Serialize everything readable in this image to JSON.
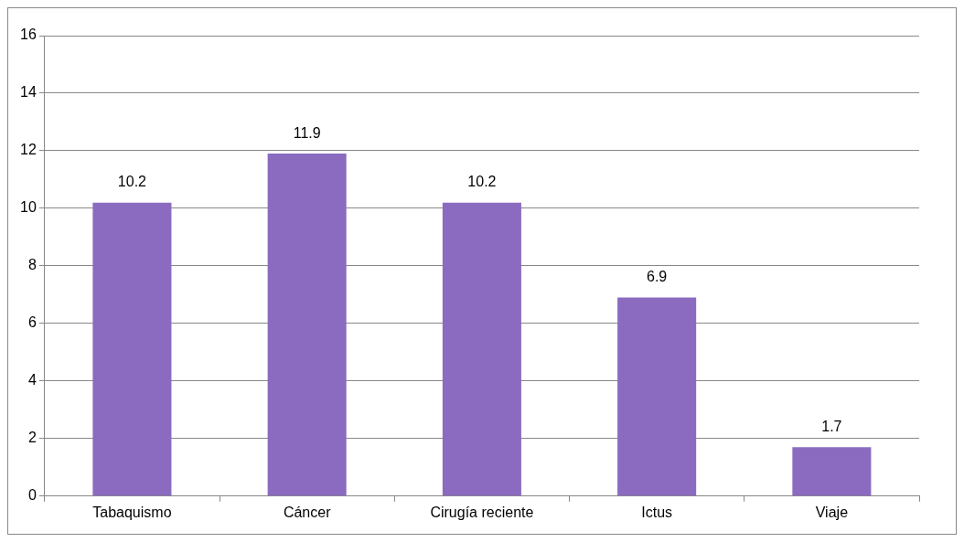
{
  "chart_data": {
    "type": "bar",
    "categories": [
      "Tabaquismo",
      "Cáncer",
      "Cirugía reciente",
      "Ictus",
      "Viaje"
    ],
    "values": [
      10.2,
      11.9,
      10.2,
      6.9,
      1.7
    ],
    "color": "#8b6bbf",
    "ylim": [
      0,
      16
    ],
    "yticks": [
      0,
      2,
      4,
      6,
      8,
      10,
      12,
      14,
      16
    ],
    "grid": "y",
    "data_labels": true,
    "legend": false
  }
}
